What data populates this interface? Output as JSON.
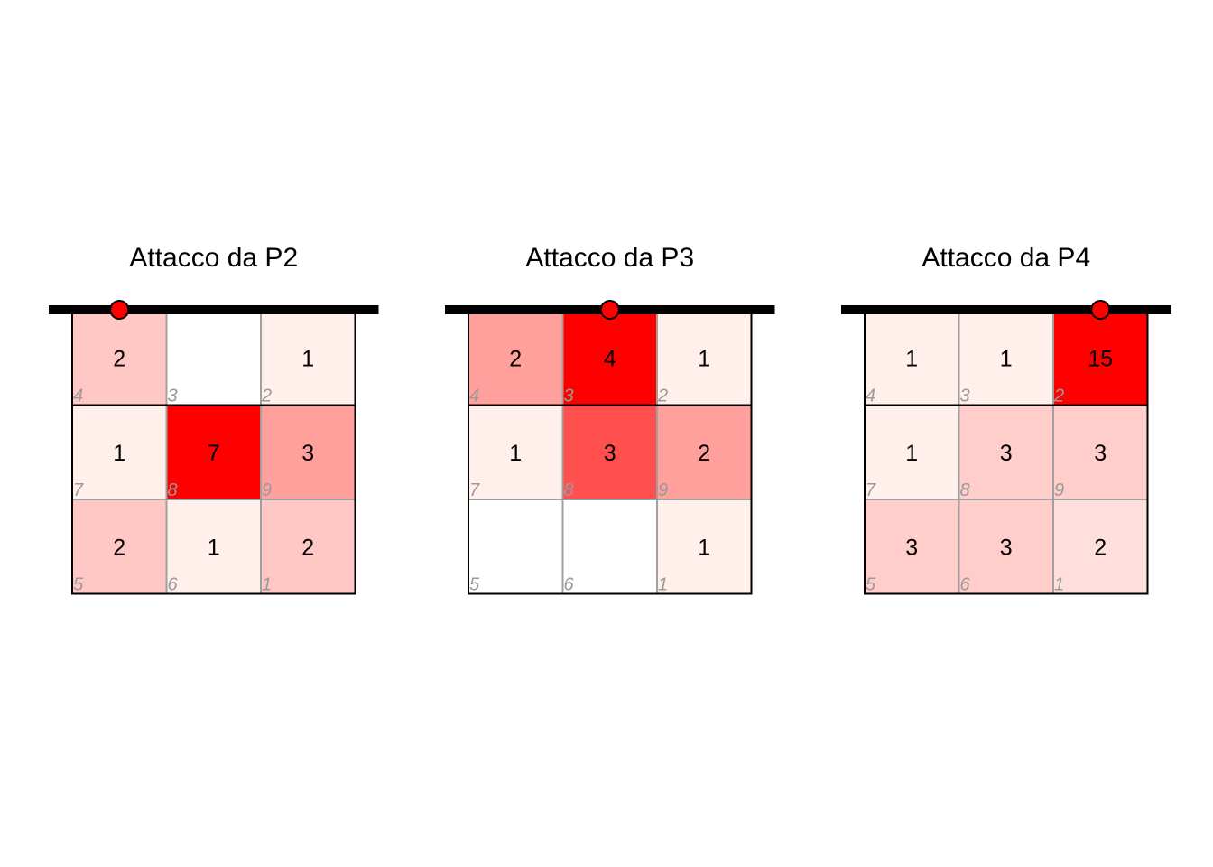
{
  "chart_data": [
    {
      "type": "heatmap",
      "title": "Attacco da P2",
      "start_zone": 4,
      "zones": [
        [
          4,
          3,
          2
        ],
        [
          7,
          8,
          9
        ],
        [
          5,
          6,
          1
        ]
      ],
      "counts": [
        [
          2,
          null,
          1
        ],
        [
          1,
          7,
          3
        ],
        [
          2,
          1,
          2
        ]
      ]
    },
    {
      "type": "heatmap",
      "title": "Attacco da P3",
      "start_zone": 3,
      "zones": [
        [
          4,
          3,
          2
        ],
        [
          7,
          8,
          9
        ],
        [
          5,
          6,
          1
        ]
      ],
      "counts": [
        [
          2,
          4,
          1
        ],
        [
          1,
          3,
          2
        ],
        [
          null,
          null,
          1
        ]
      ]
    },
    {
      "type": "heatmap",
      "title": "Attacco da P4",
      "start_zone": 2,
      "zones": [
        [
          4,
          3,
          2
        ],
        [
          7,
          8,
          9
        ],
        [
          5,
          6,
          1
        ]
      ],
      "counts": [
        [
          1,
          1,
          15
        ],
        [
          1,
          3,
          3
        ],
        [
          3,
          3,
          2
        ]
      ]
    }
  ],
  "colors": {
    "low": "#fff0ec",
    "high": "#ff0000",
    "marker": "#ff0000",
    "net": "#000000",
    "inner_grid": "#a0a0a0",
    "zone_label": "#9a9a9a"
  }
}
